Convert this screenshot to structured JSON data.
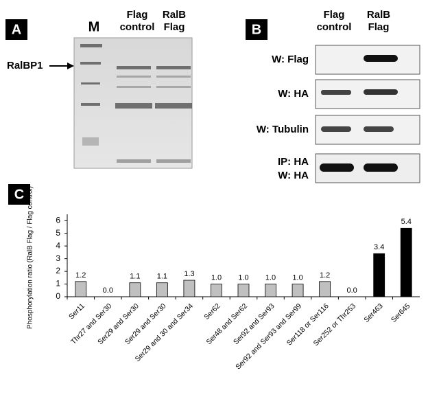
{
  "panels": {
    "a": {
      "label": "A",
      "lanes": [
        "M",
        [
          "Flag",
          "control"
        ],
        [
          "RalB",
          "Flag"
        ]
      ],
      "marker": "RalBP1"
    },
    "b": {
      "label": "B",
      "lanes": [
        [
          "Flag",
          "control"
        ],
        [
          "RalB",
          "Flag"
        ]
      ],
      "rows": [
        [
          "W: Flag"
        ],
        [
          "W: HA"
        ],
        [
          "W: Tubulin"
        ],
        [
          "IP: HA",
          "W: HA"
        ]
      ]
    },
    "c": {
      "label": "C"
    }
  },
  "chart_data": {
    "type": "bar",
    "ylabel": "Phosphorylation ratio (RalB Flag / Flag control)",
    "categories": [
      "Ser11",
      "Thr27 and Ser30",
      "Ser29 and Ser30",
      "Ser29 and Ser30",
      "Ser29 and 30 and Ser34",
      "Ser62",
      "Ser48 and Ser62",
      "Ser92 and Ser93",
      "Ser92 and Ser93 and Ser99",
      "Ser118 or Ser116",
      "Ser252 or Thr253",
      "Ser463",
      "Ser645"
    ],
    "values": [
      1.2,
      0,
      1.1,
      1.1,
      1.3,
      1.0,
      1.0,
      1.0,
      1.0,
      1.2,
      0,
      3.4,
      5.4
    ],
    "value_labels": [
      "1.2",
      "0.0",
      "1.1",
      "1.1",
      "1.3",
      "1.0",
      "1.0",
      "1.0",
      "1.0",
      "1.2",
      "0.0",
      "3.4",
      "5.4"
    ],
    "colors": [
      "#c0c0c0",
      "#c0c0c0",
      "#c0c0c0",
      "#c0c0c0",
      "#c0c0c0",
      "#c0c0c0",
      "#c0c0c0",
      "#c0c0c0",
      "#c0c0c0",
      "#c0c0c0",
      "#c0c0c0",
      "#000000",
      "#000000"
    ],
    "ylim": [
      0,
      6.5
    ],
    "yticks": [
      0,
      1,
      2,
      3,
      4,
      5,
      6
    ],
    "grid": false
  }
}
